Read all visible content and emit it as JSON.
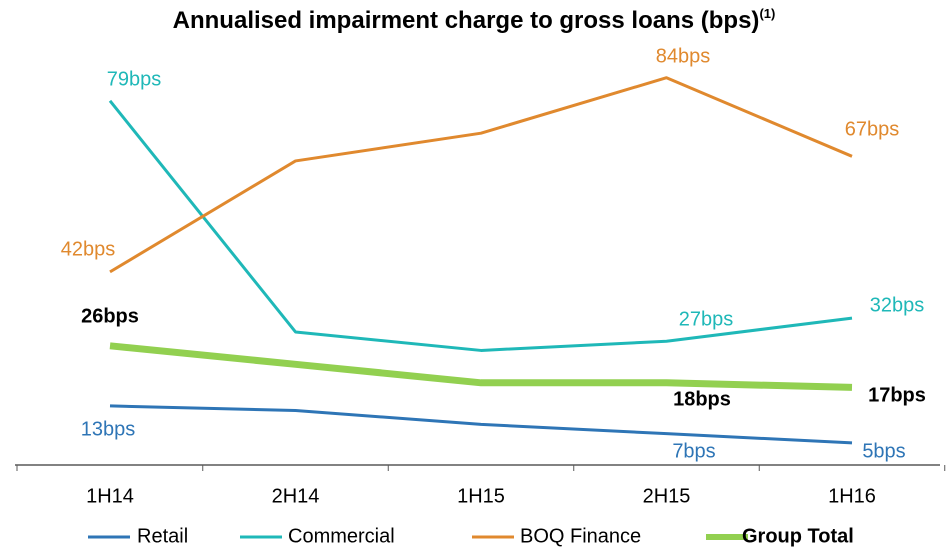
{
  "chart_data": {
    "type": "line",
    "title": "Annualised impairment charge to gross loans (bps)",
    "title_note": "(1)",
    "categories": [
      "1H14",
      "2H14",
      "1H15",
      "2H15",
      "1H16"
    ],
    "ylim": [
      0,
      90
    ],
    "series": [
      {
        "name": "Retail",
        "color": "#2e75b6",
        "values": [
          13,
          12,
          9,
          7,
          5
        ],
        "value_labels": [
          "13bps",
          null,
          null,
          "7bps",
          "5bps"
        ]
      },
      {
        "name": "Commercial",
        "color": "#1fb8b8",
        "values": [
          79,
          29,
          25,
          27,
          32
        ],
        "value_labels": [
          "79bps",
          null,
          null,
          "27bps",
          "32bps"
        ]
      },
      {
        "name": "BOQ Finance",
        "color": "#e0892e",
        "values": [
          42,
          66,
          72,
          84,
          67
        ],
        "value_labels": [
          "42bps",
          null,
          null,
          "84bps",
          "67bps"
        ]
      },
      {
        "name": "Group Total",
        "color": "#92d050",
        "values": [
          26,
          22,
          18,
          18,
          17
        ],
        "value_labels": [
          "26bps",
          null,
          null,
          "18bps",
          "17bps"
        ]
      }
    ]
  }
}
